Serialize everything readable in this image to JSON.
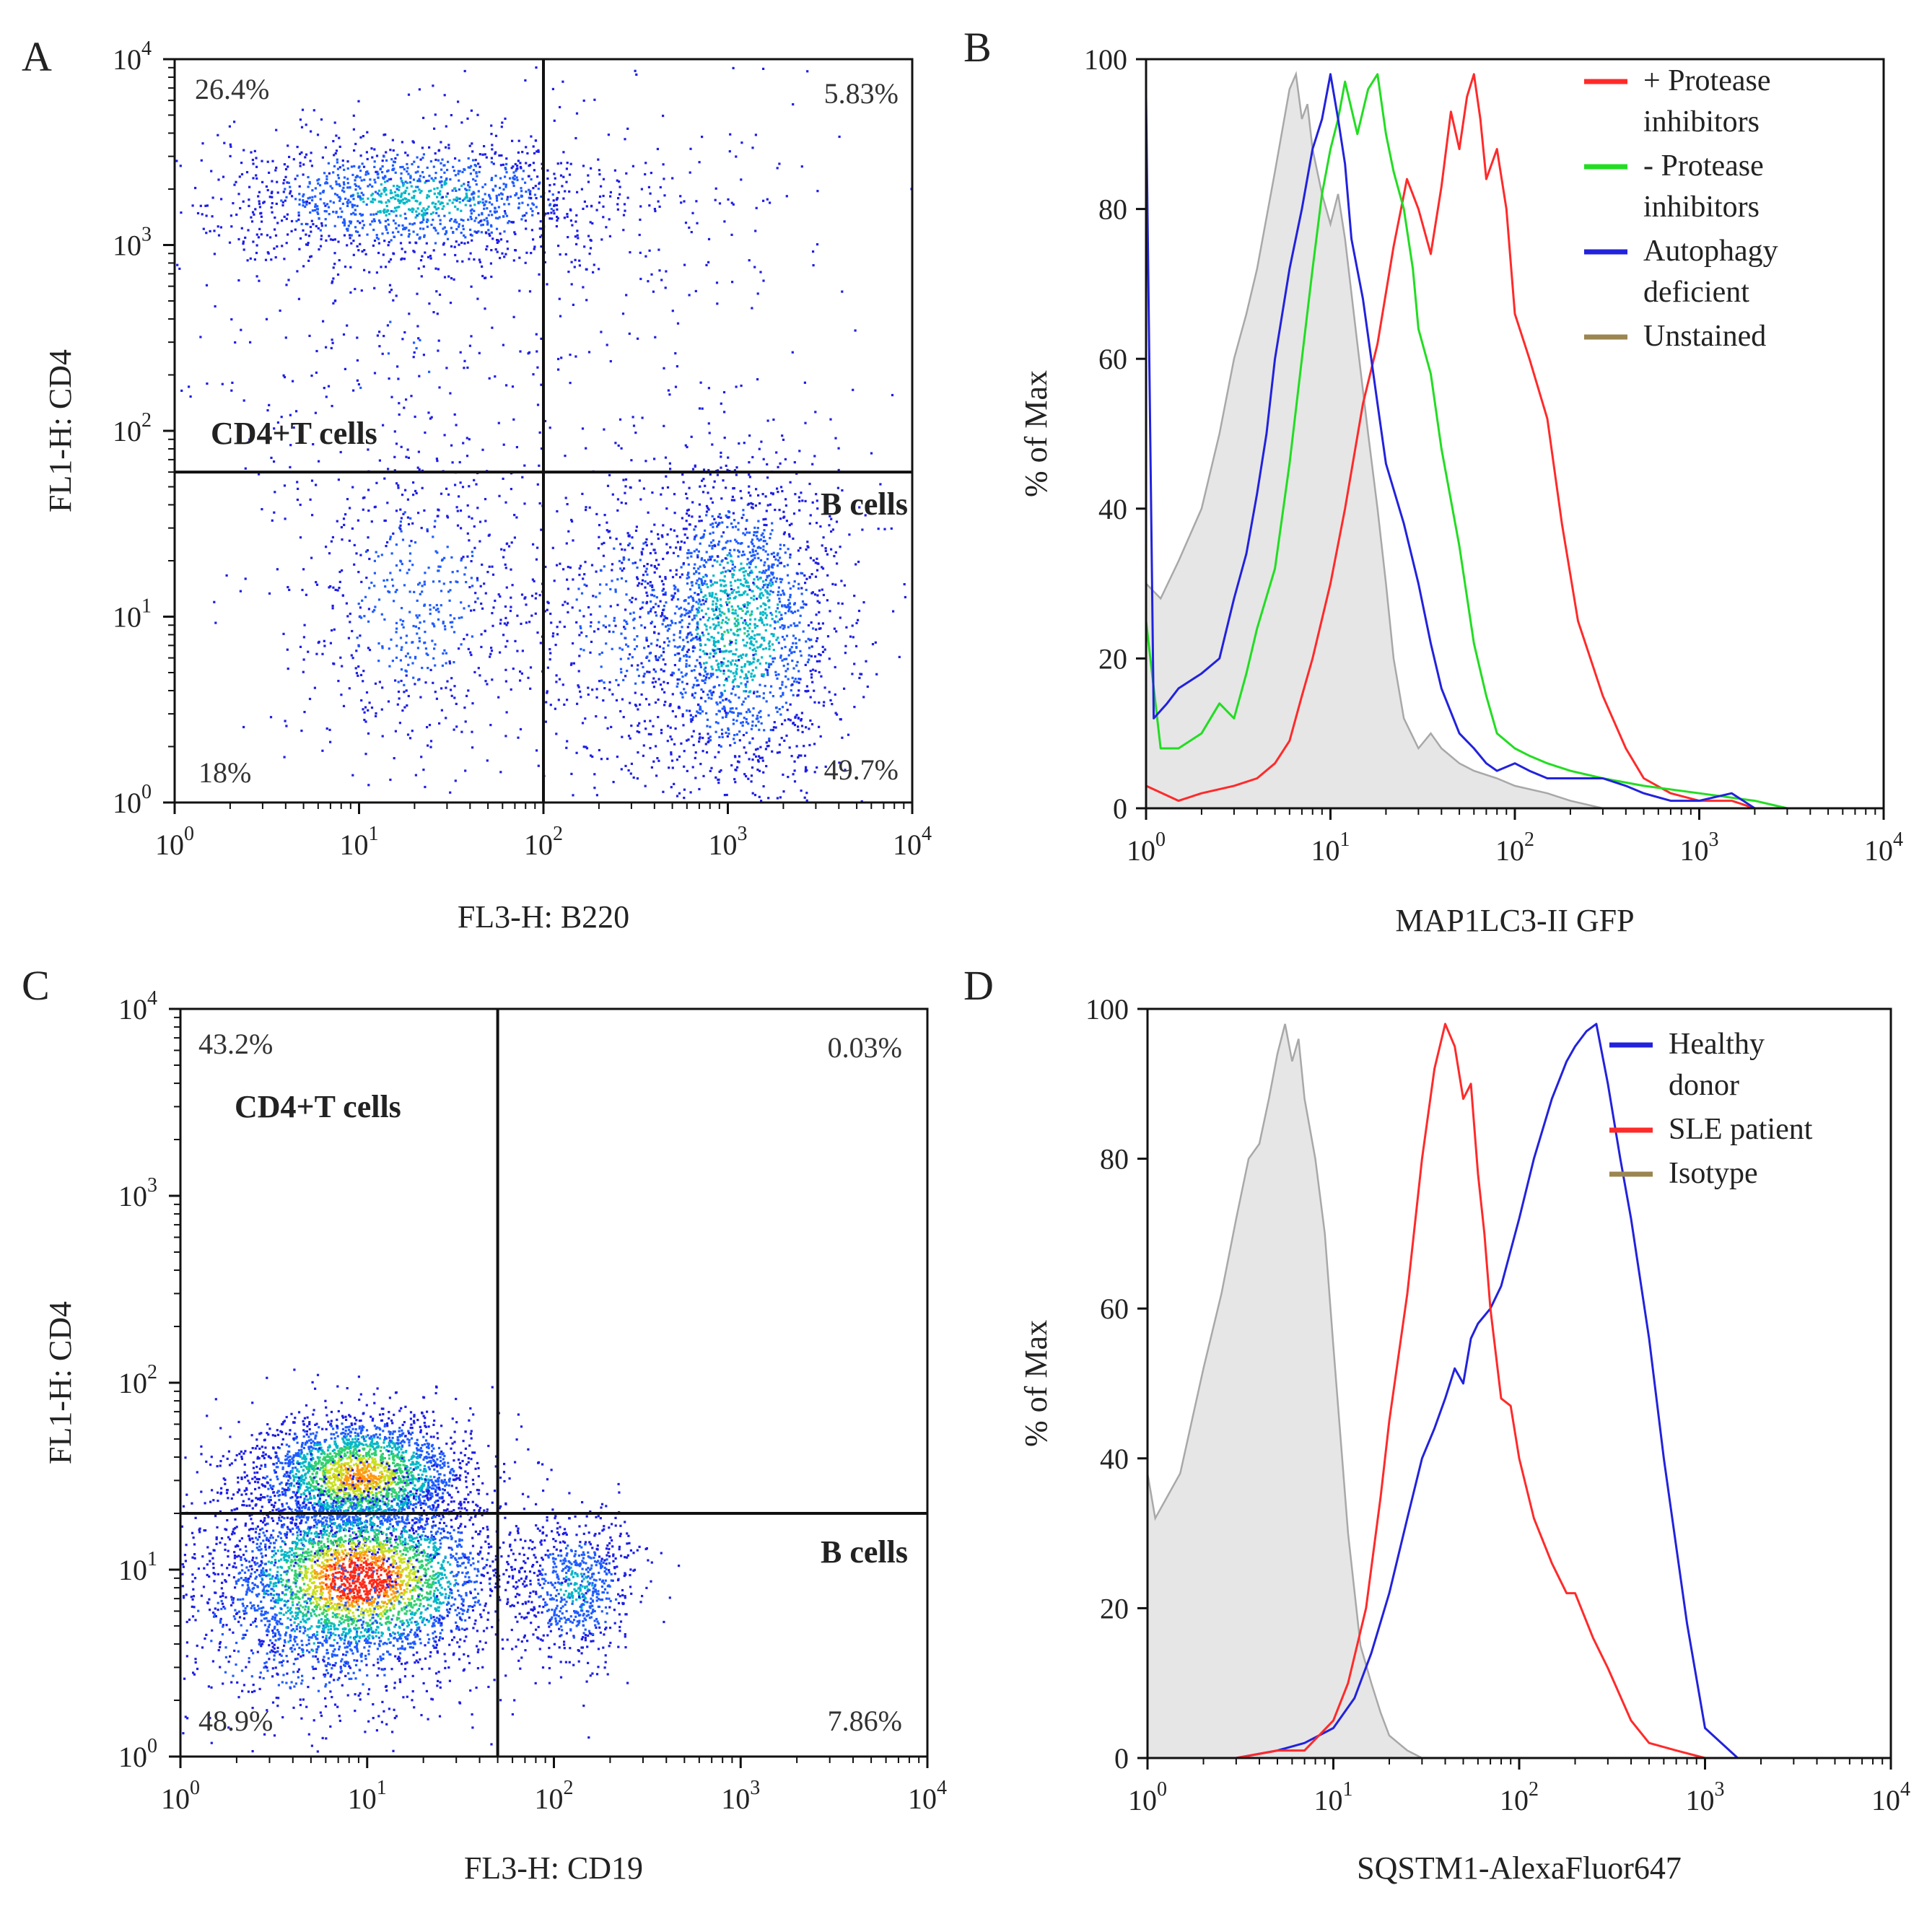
{
  "figure": {
    "panels": [
      {
        "letter": "A"
      },
      {
        "letter": "B"
      },
      {
        "letter": "C"
      },
      {
        "letter": "D"
      }
    ]
  },
  "chart_data": [
    {
      "id": "A",
      "type": "scatter",
      "title": "",
      "xlabel": "FL3-H: B220",
      "ylabel": "FL1-H: CD4",
      "xscale": "log",
      "yscale": "log",
      "xlim": [
        1,
        10000
      ],
      "ylim": [
        1,
        10000
      ],
      "xticks": [
        {
          "base": "10",
          "exp": "0"
        },
        {
          "base": "10",
          "exp": "1"
        },
        {
          "base": "10",
          "exp": "2"
        },
        {
          "base": "10",
          "exp": "3"
        },
        {
          "base": "10",
          "exp": "4"
        }
      ],
      "yticks": [
        {
          "base": "10",
          "exp": "0"
        },
        {
          "base": "10",
          "exp": "1"
        },
        {
          "base": "10",
          "exp": "2"
        },
        {
          "base": "10",
          "exp": "3"
        },
        {
          "base": "10",
          "exp": "4"
        }
      ],
      "gate": {
        "x": 100,
        "y": 60
      },
      "quadrants": {
        "top_left": "26.4%",
        "top_right": "5.83%",
        "bottom_left": "18%",
        "bottom_right": "49.7%"
      },
      "populations": [
        {
          "label": "CD4+T cells",
          "x": 20,
          "y": 1800,
          "sx": 0.55,
          "sy": 0.18,
          "n": 1400
        },
        {
          "label": "B cells",
          "x": 1100,
          "y": 9,
          "sx": 0.28,
          "sy": 0.45,
          "n": 1900
        }
      ],
      "background_populations": [
        {
          "x": 20,
          "y": 12,
          "sx": 0.35,
          "sy": 0.45,
          "n": 650
        },
        {
          "x": 15,
          "y": 300,
          "sx": 0.7,
          "sy": 0.5,
          "n": 250
        },
        {
          "x": 400,
          "y": 1000,
          "sx": 0.6,
          "sy": 0.6,
          "n": 140
        },
        {
          "x": 300,
          "y": 10,
          "sx": 0.35,
          "sy": 0.45,
          "n": 500
        }
      ]
    },
    {
      "id": "B",
      "type": "area",
      "title": "",
      "xlabel": "MAP1LC3-II GFP",
      "ylabel": "% of Max",
      "xscale": "log",
      "xlim": [
        1,
        10000
      ],
      "ylim": [
        0,
        100
      ],
      "xticks": [
        {
          "base": "10",
          "exp": "0"
        },
        {
          "base": "10",
          "exp": "1"
        },
        {
          "base": "10",
          "exp": "2"
        },
        {
          "base": "10",
          "exp": "3"
        },
        {
          "base": "10",
          "exp": "4"
        }
      ],
      "yticks": [
        "0",
        "20",
        "40",
        "60",
        "80",
        "100"
      ],
      "legend_position": "top-right",
      "series": [
        {
          "name": "+ Protease inhibitors",
          "legend_lines": [
            "+ Protease",
            "inhibitors"
          ],
          "color": "#ff2a2a",
          "fill": false,
          "x": [
            1,
            1.5,
            2,
            3,
            4,
            5,
            6,
            7,
            8,
            10,
            12,
            15,
            18,
            22,
            26,
            30,
            35,
            40,
            45,
            50,
            55,
            60,
            65,
            70,
            80,
            90,
            100,
            120,
            150,
            180,
            220,
            300,
            400,
            500,
            700,
            1000,
            1500,
            2000,
            3000,
            10000
          ],
          "y": [
            3,
            1,
            2,
            3,
            4,
            6,
            9,
            15,
            20,
            30,
            40,
            54,
            62,
            75,
            84,
            80,
            74,
            83,
            93,
            88,
            95,
            98,
            92,
            84,
            88,
            80,
            66,
            60,
            52,
            38,
            25,
            15,
            8,
            4,
            2,
            1,
            1,
            0,
            0,
            0
          ]
        },
        {
          "name": "- Protease inhibitors",
          "legend_lines": [
            "- Protease",
            "inhibitors"
          ],
          "color": "#22dd22",
          "fill": false,
          "x": [
            1,
            1.2,
            1.5,
            2,
            2.5,
            3,
            3.5,
            4,
            5,
            6,
            7,
            8,
            9,
            10,
            11,
            12,
            14,
            16,
            18,
            20,
            22,
            25,
            28,
            30,
            35,
            40,
            50,
            60,
            70,
            80,
            100,
            120,
            150,
            200,
            300,
            500,
            1000,
            2000,
            3000,
            10000
          ],
          "y": [
            25,
            8,
            8,
            10,
            14,
            12,
            18,
            24,
            32,
            46,
            60,
            72,
            82,
            88,
            92,
            97,
            90,
            96,
            98,
            90,
            85,
            80,
            72,
            64,
            58,
            48,
            35,
            22,
            15,
            10,
            8,
            7,
            6,
            5,
            4,
            3,
            2,
            1,
            0,
            0
          ]
        },
        {
          "name": "Autophagy deficient",
          "legend_lines": [
            "Autophagy",
            "deficient"
          ],
          "color": "#2222dd",
          "fill": false,
          "x": [
            1,
            1.1,
            1.3,
            1.5,
            2,
            2.5,
            3,
            3.5,
            4,
            4.5,
            5,
            6,
            7,
            8,
            9,
            10,
            11,
            12,
            13,
            15,
            18,
            20,
            25,
            30,
            35,
            40,
            50,
            60,
            70,
            80,
            100,
            120,
            150,
            200,
            300,
            400,
            500,
            700,
            1000,
            1500,
            2000,
            10000
          ],
          "y": [
            95,
            12,
            14,
            16,
            18,
            20,
            28,
            34,
            42,
            50,
            60,
            72,
            80,
            88,
            92,
            98,
            92,
            86,
            76,
            68,
            54,
            46,
            38,
            30,
            22,
            16,
            10,
            8,
            6,
            5,
            6,
            5,
            4,
            4,
            4,
            3,
            2,
            1,
            1,
            2,
            0,
            0
          ]
        },
        {
          "name": "Unstained",
          "legend_lines": [
            "Unstained"
          ],
          "color": "#a8a8a8",
          "fill": true,
          "legend_color": "#9b8550",
          "x": [
            1,
            1.2,
            1.5,
            2,
            2.5,
            3,
            3.5,
            4,
            5,
            6,
            6.5,
            7,
            7.5,
            8,
            9,
            10,
            11,
            12,
            14,
            16,
            18,
            20,
            22,
            25,
            30,
            35,
            40,
            50,
            60,
            80,
            100,
            150,
            200,
            300,
            500
          ],
          "y": [
            30,
            28,
            33,
            40,
            50,
            60,
            66,
            72,
            85,
            96,
            98,
            92,
            94,
            88,
            82,
            78,
            82,
            76,
            62,
            50,
            40,
            30,
            20,
            12,
            8,
            10,
            8,
            6,
            5,
            4,
            3,
            2,
            1,
            0,
            0
          ]
        }
      ]
    },
    {
      "id": "C",
      "type": "scatter",
      "title": "",
      "xlabel": "FL3-H: CD19",
      "ylabel": "FL1-H: CD4",
      "xscale": "log",
      "yscale": "log",
      "xlim": [
        1,
        10000
      ],
      "ylim": [
        1,
        10000
      ],
      "xticks": [
        {
          "base": "10",
          "exp": "0"
        },
        {
          "base": "10",
          "exp": "1"
        },
        {
          "base": "10",
          "exp": "2"
        },
        {
          "base": "10",
          "exp": "3"
        },
        {
          "base": "10",
          "exp": "4"
        }
      ],
      "yticks": [
        {
          "base": "10",
          "exp": "0"
        },
        {
          "base": "10",
          "exp": "1"
        },
        {
          "base": "10",
          "exp": "2"
        },
        {
          "base": "10",
          "exp": "3"
        },
        {
          "base": "10",
          "exp": "4"
        }
      ],
      "gate": {
        "x": 50,
        "y": 20
      },
      "quadrants": {
        "top_left": "43.2%",
        "top_right": "0.03%",
        "bottom_left": "48.9%",
        "bottom_right": "7.86%"
      },
      "populations": [
        {
          "label": "CD4+T cells",
          "x": 9,
          "y": 32,
          "sx": 0.3,
          "sy": 0.17,
          "n": 2600
        },
        {
          "label": "B cells",
          "x": 130,
          "y": 8,
          "sx": 0.16,
          "sy": 0.2,
          "n": 700
        }
      ],
      "background_populations": [
        {
          "x": 9,
          "y": 9,
          "sx": 0.38,
          "sy": 0.24,
          "n": 3400
        },
        {
          "x": 5,
          "y": 5,
          "sx": 0.5,
          "sy": 0.3,
          "n": 600
        }
      ]
    },
    {
      "id": "D",
      "type": "area",
      "title": "",
      "xlabel": "SQSTM1-AlexaFluor647",
      "ylabel": "% of Max",
      "xscale": "log",
      "xlim": [
        1,
        10000
      ],
      "ylim": [
        0,
        100
      ],
      "xticks": [
        {
          "base": "10",
          "exp": "0"
        },
        {
          "base": "10",
          "exp": "1"
        },
        {
          "base": "10",
          "exp": "2"
        },
        {
          "base": "10",
          "exp": "3"
        },
        {
          "base": "10",
          "exp": "4"
        }
      ],
      "yticks": [
        "0",
        "20",
        "40",
        "60",
        "80",
        "100"
      ],
      "legend_position": "top-right",
      "series": [
        {
          "name": "Healthy donor",
          "legend_lines": [
            "Healthy",
            "donor"
          ],
          "color": "#2222dd",
          "fill": false,
          "x": [
            1,
            3,
            5,
            7,
            10,
            13,
            16,
            20,
            25,
            30,
            35,
            40,
            45,
            50,
            55,
            60,
            70,
            80,
            100,
            120,
            150,
            180,
            200,
            230,
            260,
            300,
            350,
            400,
            500,
            600,
            800,
            1000,
            1500,
            10000
          ],
          "y": [
            0,
            0,
            1,
            2,
            4,
            8,
            14,
            22,
            32,
            40,
            44,
            48,
            52,
            50,
            56,
            58,
            60,
            63,
            72,
            80,
            88,
            93,
            95,
            97,
            98,
            90,
            80,
            72,
            56,
            40,
            18,
            4,
            0,
            0
          ]
        },
        {
          "name": "SLE patient",
          "legend_lines": [
            "SLE patient"
          ],
          "color": "#ff2a2a",
          "fill": false,
          "x": [
            1,
            3,
            5,
            7,
            10,
            12,
            15,
            18,
            20,
            25,
            30,
            35,
            40,
            45,
            50,
            55,
            60,
            65,
            70,
            80,
            90,
            100,
            120,
            150,
            180,
            200,
            250,
            300,
            400,
            500,
            700,
            1000,
            10000
          ],
          "y": [
            0,
            0,
            1,
            1,
            5,
            10,
            20,
            35,
            45,
            62,
            80,
            92,
            98,
            95,
            88,
            90,
            78,
            70,
            60,
            48,
            47,
            40,
            32,
            26,
            22,
            22,
            16,
            12,
            5,
            2,
            1,
            0,
            0
          ]
        },
        {
          "name": "Isotype",
          "legend_lines": [
            "Isotype"
          ],
          "color": "#a8a8a8",
          "fill": true,
          "legend_color": "#9b8550",
          "x": [
            1,
            1.1,
            1.5,
            2,
            2.5,
            3,
            3.5,
            4,
            4.5,
            5,
            5.5,
            6,
            6.5,
            7,
            8,
            9,
            10,
            12,
            14,
            16,
            18,
            20,
            25,
            30,
            40
          ],
          "y": [
            38,
            32,
            38,
            52,
            62,
            72,
            80,
            82,
            88,
            94,
            98,
            93,
            96,
            88,
            80,
            70,
            55,
            30,
            15,
            10,
            6,
            3,
            1,
            0,
            0
          ]
        }
      ]
    }
  ]
}
